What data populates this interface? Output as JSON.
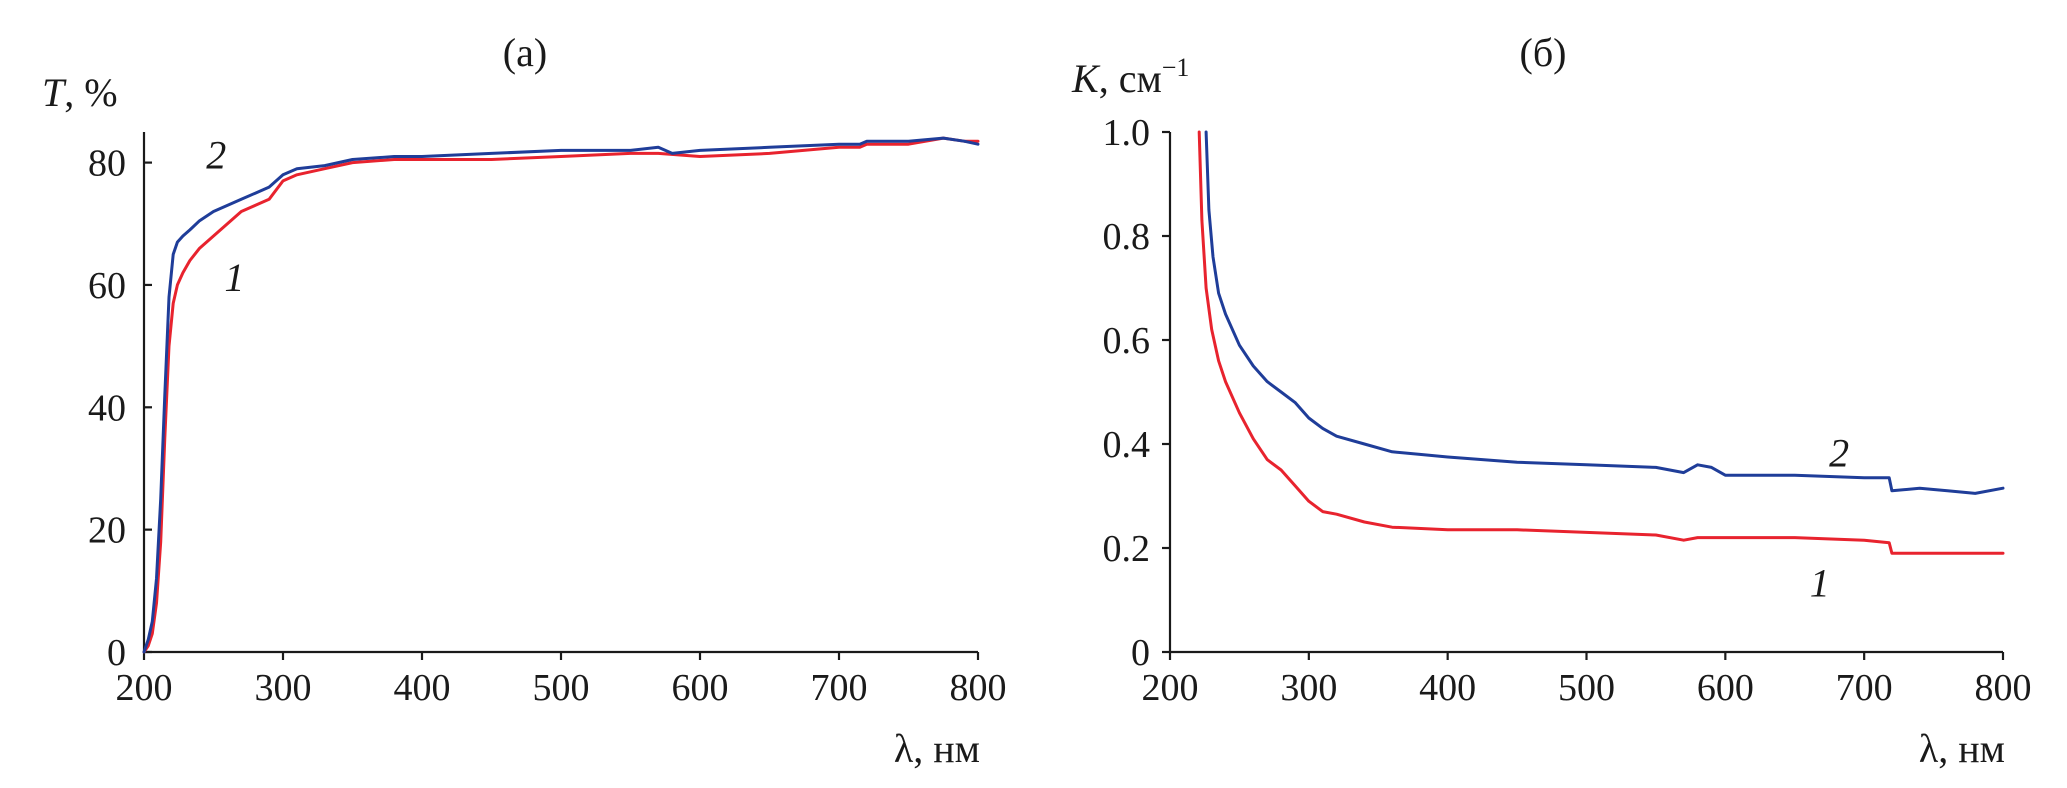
{
  "chart_data": [
    {
      "id": "a",
      "type": "line",
      "title": "(a)",
      "ylabel_var": "T",
      "ylabel_rest": ", %",
      "xlabel": "λ, нм",
      "xlim": [
        200,
        800
      ],
      "ylim": [
        0,
        85
      ],
      "xticks": [
        200,
        300,
        400,
        500,
        600,
        700,
        800
      ],
      "yticks": [
        0,
        20,
        40,
        60,
        80
      ],
      "series": [
        {
          "name": "1",
          "color": "#e8232e",
          "x": [
            200,
            203,
            206,
            209,
            212,
            215,
            218,
            221,
            224,
            228,
            233,
            240,
            250,
            260,
            270,
            280,
            290,
            300,
            310,
            330,
            350,
            380,
            400,
            450,
            500,
            550,
            570,
            600,
            650,
            700,
            715,
            720,
            750,
            775,
            790,
            800
          ],
          "y": [
            0,
            1,
            3,
            8,
            18,
            35,
            50,
            57,
            60,
            62,
            64,
            66,
            68,
            70,
            72,
            73,
            74,
            77,
            78,
            79,
            80,
            80.5,
            80.5,
            80.5,
            81,
            81.5,
            81.5,
            81,
            81.5,
            82.5,
            82.5,
            83,
            83,
            84,
            83.5,
            83.5
          ],
          "label_x": 265,
          "label_y": 61
        },
        {
          "name": "2",
          "color": "#1f3d99",
          "x": [
            200,
            203,
            206,
            209,
            212,
            215,
            218,
            221,
            224,
            228,
            233,
            240,
            250,
            260,
            270,
            280,
            290,
            300,
            310,
            330,
            350,
            380,
            400,
            450,
            500,
            550,
            570,
            580,
            600,
            650,
            700,
            715,
            720,
            750,
            775,
            790,
            800
          ],
          "y": [
            0,
            2,
            5,
            12,
            25,
            42,
            58,
            65,
            67,
            68,
            69,
            70.5,
            72,
            73,
            74,
            75,
            76,
            78,
            79,
            79.5,
            80.5,
            81,
            81,
            81.5,
            82,
            82,
            82.5,
            81.5,
            82,
            82.5,
            83,
            83,
            83.5,
            83.5,
            84,
            83.5,
            83
          ],
          "label_x": 252,
          "label_y": 81
        }
      ]
    },
    {
      "id": "b",
      "type": "line",
      "title": "(б)",
      "ylabel_var": "K",
      "ylabel_rest": ", см",
      "ylabel_sup": "−1",
      "xlabel": "λ, нм",
      "xlim": [
        200,
        800
      ],
      "ylim": [
        0,
        1.0
      ],
      "xticks": [
        200,
        300,
        400,
        500,
        600,
        700,
        800
      ],
      "yticks": [
        0,
        0.2,
        0.4,
        0.6,
        0.8,
        1.0
      ],
      "ytick_labels": [
        "0",
        "0.2",
        "0.4",
        "0.6",
        "0.8",
        "1.0"
      ],
      "series": [
        {
          "name": "1",
          "color": "#e8232e",
          "x": [
            221,
            223,
            226,
            230,
            235,
            240,
            250,
            260,
            270,
            280,
            290,
            300,
            310,
            320,
            340,
            360,
            400,
            450,
            500,
            550,
            570,
            580,
            600,
            650,
            700,
            718,
            720,
            750,
            800
          ],
          "y": [
            1.0,
            0.83,
            0.7,
            0.62,
            0.56,
            0.52,
            0.46,
            0.41,
            0.37,
            0.35,
            0.32,
            0.29,
            0.27,
            0.265,
            0.25,
            0.24,
            0.235,
            0.235,
            0.23,
            0.225,
            0.215,
            0.22,
            0.22,
            0.22,
            0.215,
            0.21,
            0.19,
            0.19,
            0.19
          ],
          "label_x": 668,
          "label_y": 0.13
        },
        {
          "name": "2",
          "color": "#1f3d99",
          "x": [
            226,
            228,
            231,
            235,
            240,
            250,
            260,
            270,
            280,
            290,
            300,
            310,
            320,
            340,
            360,
            380,
            400,
            450,
            500,
            550,
            570,
            580,
            590,
            600,
            650,
            700,
            718,
            720,
            740,
            760,
            780,
            800
          ],
          "y": [
            1.0,
            0.85,
            0.76,
            0.69,
            0.65,
            0.59,
            0.55,
            0.52,
            0.5,
            0.48,
            0.45,
            0.43,
            0.415,
            0.4,
            0.385,
            0.38,
            0.375,
            0.365,
            0.36,
            0.355,
            0.345,
            0.36,
            0.355,
            0.34,
            0.34,
            0.335,
            0.335,
            0.31,
            0.315,
            0.31,
            0.305,
            0.315
          ],
          "label_x": 682,
          "label_y": 0.38
        }
      ]
    }
  ]
}
